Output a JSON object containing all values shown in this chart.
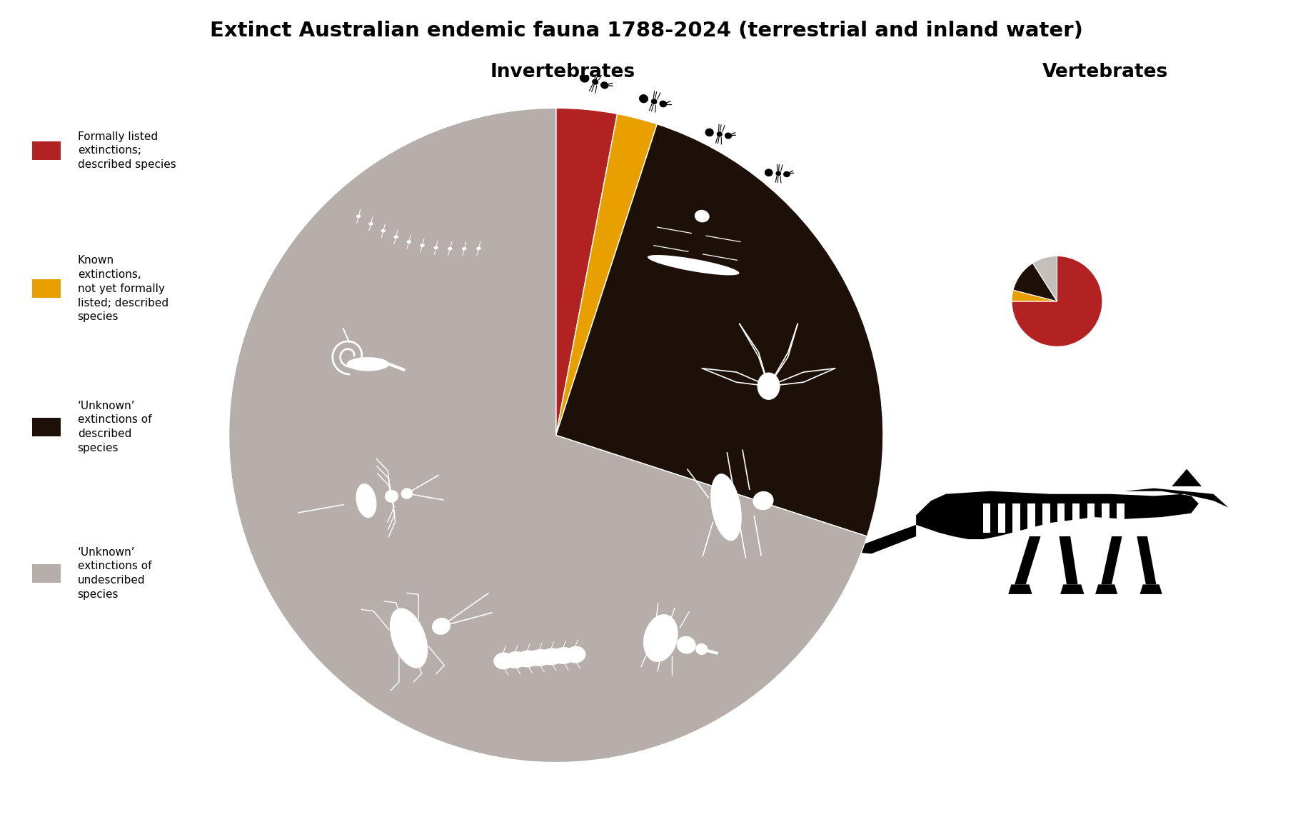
{
  "title": "Extinct Australian endemic fauna 1788-2024 (terrestrial and inland water)",
  "title_fontsize": 21,
  "label_invertebrates": "Invertebrates",
  "label_vertebrates": "Vertebrates",
  "label_fontsize": 19,
  "background_color": "#ffffff",
  "pie_colors": [
    "#b22222",
    "#e8a000",
    "#1c1008",
    "#b5aeaa"
  ],
  "pie_values": [
    3,
    2,
    25,
    70
  ],
  "small_pie_colors": [
    "#b22222",
    "#e8a000",
    "#1c1008",
    "#c5bfbb"
  ],
  "small_pie_values": [
    75,
    4,
    12,
    9
  ],
  "legend_labels": [
    "Formally listed\nextinctions;\ndescribed species",
    "Known\nextinctions,\nnot yet formally\nlisted; described\nspecies",
    "‘Unknown’\nextinctions of\ndescribed\nspecies",
    "‘Unknown’\nextinctions of\nundescribed\nspecies"
  ],
  "legend_colors": [
    "#b22222",
    "#e8a000",
    "#1c1008",
    "#b5aeaa"
  ]
}
